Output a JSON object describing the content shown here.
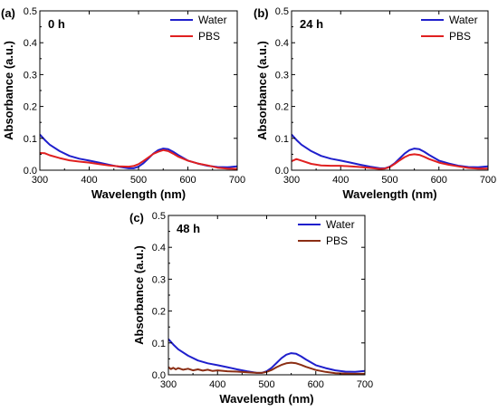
{
  "chart_data": [
    {
      "panel": "(a)",
      "type": "line",
      "annotation": "0 h",
      "xlabel": "Wavelength (nm)",
      "ylabel": "Absorbance (a.u.)",
      "xlim": [
        300,
        700
      ],
      "ylim": [
        0,
        0.5
      ],
      "xticks": [
        300,
        400,
        500,
        600,
        700
      ],
      "yticks": [
        0.0,
        0.1,
        0.2,
        0.3,
        0.4,
        0.5
      ],
      "grid": false,
      "legend": "top-right",
      "series": [
        {
          "name": "Water",
          "color": "#1f1fcc",
          "x": [
            300,
            310,
            320,
            340,
            360,
            380,
            400,
            420,
            440,
            460,
            480,
            490,
            500,
            510,
            520,
            530,
            540,
            550,
            560,
            570,
            580,
            600,
            620,
            640,
            660,
            680,
            700
          ],
          "y": [
            0.112,
            0.095,
            0.08,
            0.06,
            0.045,
            0.036,
            0.03,
            0.024,
            0.017,
            0.011,
            0.006,
            0.006,
            0.011,
            0.022,
            0.037,
            0.052,
            0.063,
            0.068,
            0.066,
            0.058,
            0.048,
            0.03,
            0.021,
            0.014,
            0.01,
            0.009,
            0.012
          ]
        },
        {
          "name": "PBS",
          "color": "#e02020",
          "x": [
            300,
            310,
            320,
            340,
            360,
            380,
            400,
            420,
            440,
            460,
            480,
            490,
            500,
            510,
            520,
            530,
            540,
            550,
            560,
            570,
            580,
            600,
            620,
            640,
            660,
            680,
            700
          ],
          "y": [
            0.054,
            0.053,
            0.047,
            0.038,
            0.031,
            0.027,
            0.024,
            0.019,
            0.015,
            0.012,
            0.011,
            0.013,
            0.019,
            0.029,
            0.04,
            0.051,
            0.058,
            0.063,
            0.06,
            0.052,
            0.043,
            0.03,
            0.021,
            0.015,
            0.008,
            0.005,
            0.004
          ]
        }
      ]
    },
    {
      "panel": "(b)",
      "type": "line",
      "annotation": "24 h",
      "xlabel": "Wavelength (nm)",
      "ylabel": "Absorbance (a.u.)",
      "xlim": [
        300,
        700
      ],
      "ylim": [
        0,
        0.5
      ],
      "xticks": [
        300,
        400,
        500,
        600,
        700
      ],
      "yticks": [
        0.0,
        0.1,
        0.2,
        0.3,
        0.4,
        0.5
      ],
      "grid": false,
      "legend": "top-right",
      "series": [
        {
          "name": "Water",
          "color": "#1f1fcc",
          "x": [
            300,
            310,
            320,
            340,
            360,
            380,
            400,
            420,
            440,
            460,
            480,
            490,
            500,
            510,
            520,
            530,
            540,
            550,
            560,
            570,
            580,
            600,
            620,
            640,
            660,
            680,
            700
          ],
          "y": [
            0.112,
            0.095,
            0.08,
            0.06,
            0.045,
            0.036,
            0.03,
            0.024,
            0.017,
            0.011,
            0.006,
            0.006,
            0.011,
            0.022,
            0.037,
            0.052,
            0.063,
            0.068,
            0.066,
            0.058,
            0.048,
            0.03,
            0.021,
            0.014,
            0.01,
            0.009,
            0.012
          ]
        },
        {
          "name": "PBS",
          "color": "#e02020",
          "x": [
            300,
            310,
            320,
            340,
            360,
            380,
            400,
            420,
            440,
            460,
            480,
            490,
            500,
            510,
            520,
            530,
            540,
            550,
            560,
            570,
            580,
            600,
            620,
            640,
            660,
            680,
            700
          ],
          "y": [
            0.028,
            0.035,
            0.03,
            0.02,
            0.015,
            0.014,
            0.014,
            0.012,
            0.01,
            0.007,
            0.004,
            0.005,
            0.01,
            0.02,
            0.031,
            0.041,
            0.048,
            0.05,
            0.048,
            0.042,
            0.035,
            0.024,
            0.017,
            0.012,
            0.007,
            0.005,
            0.005
          ]
        }
      ]
    },
    {
      "panel": "(c)",
      "type": "line",
      "annotation": "48 h",
      "xlabel": "Wavelength (nm)",
      "ylabel": "Absorbance (a.u.)",
      "xlim": [
        300,
        700
      ],
      "ylim": [
        0,
        0.5
      ],
      "xticks": [
        300,
        400,
        500,
        600,
        700
      ],
      "yticks": [
        0.0,
        0.1,
        0.2,
        0.3,
        0.4,
        0.5
      ],
      "grid": false,
      "legend": "top-right",
      "series": [
        {
          "name": "Water",
          "color": "#1f1fcc",
          "x": [
            300,
            310,
            320,
            340,
            360,
            380,
            400,
            420,
            440,
            460,
            480,
            490,
            500,
            510,
            520,
            530,
            540,
            550,
            560,
            570,
            580,
            600,
            620,
            640,
            660,
            680,
            700
          ],
          "y": [
            0.112,
            0.095,
            0.08,
            0.06,
            0.045,
            0.036,
            0.03,
            0.024,
            0.017,
            0.011,
            0.006,
            0.006,
            0.011,
            0.022,
            0.037,
            0.052,
            0.063,
            0.068,
            0.066,
            0.058,
            0.048,
            0.03,
            0.021,
            0.014,
            0.01,
            0.009,
            0.012
          ]
        },
        {
          "name": "PBS",
          "color": "#8b2e14",
          "x": [
            300,
            305,
            310,
            315,
            320,
            330,
            340,
            350,
            360,
            370,
            380,
            390,
            400,
            420,
            440,
            460,
            480,
            490,
            500,
            510,
            520,
            530,
            540,
            550,
            560,
            570,
            580,
            600,
            620,
            640,
            660,
            680,
            700
          ],
          "y": [
            0.024,
            0.018,
            0.022,
            0.017,
            0.021,
            0.016,
            0.019,
            0.014,
            0.017,
            0.013,
            0.016,
            0.012,
            0.014,
            0.011,
            0.01,
            0.008,
            0.006,
            0.006,
            0.009,
            0.015,
            0.024,
            0.031,
            0.036,
            0.038,
            0.036,
            0.031,
            0.025,
            0.015,
            0.009,
            0.005,
            0.004,
            0.003,
            0.003
          ]
        }
      ]
    }
  ]
}
